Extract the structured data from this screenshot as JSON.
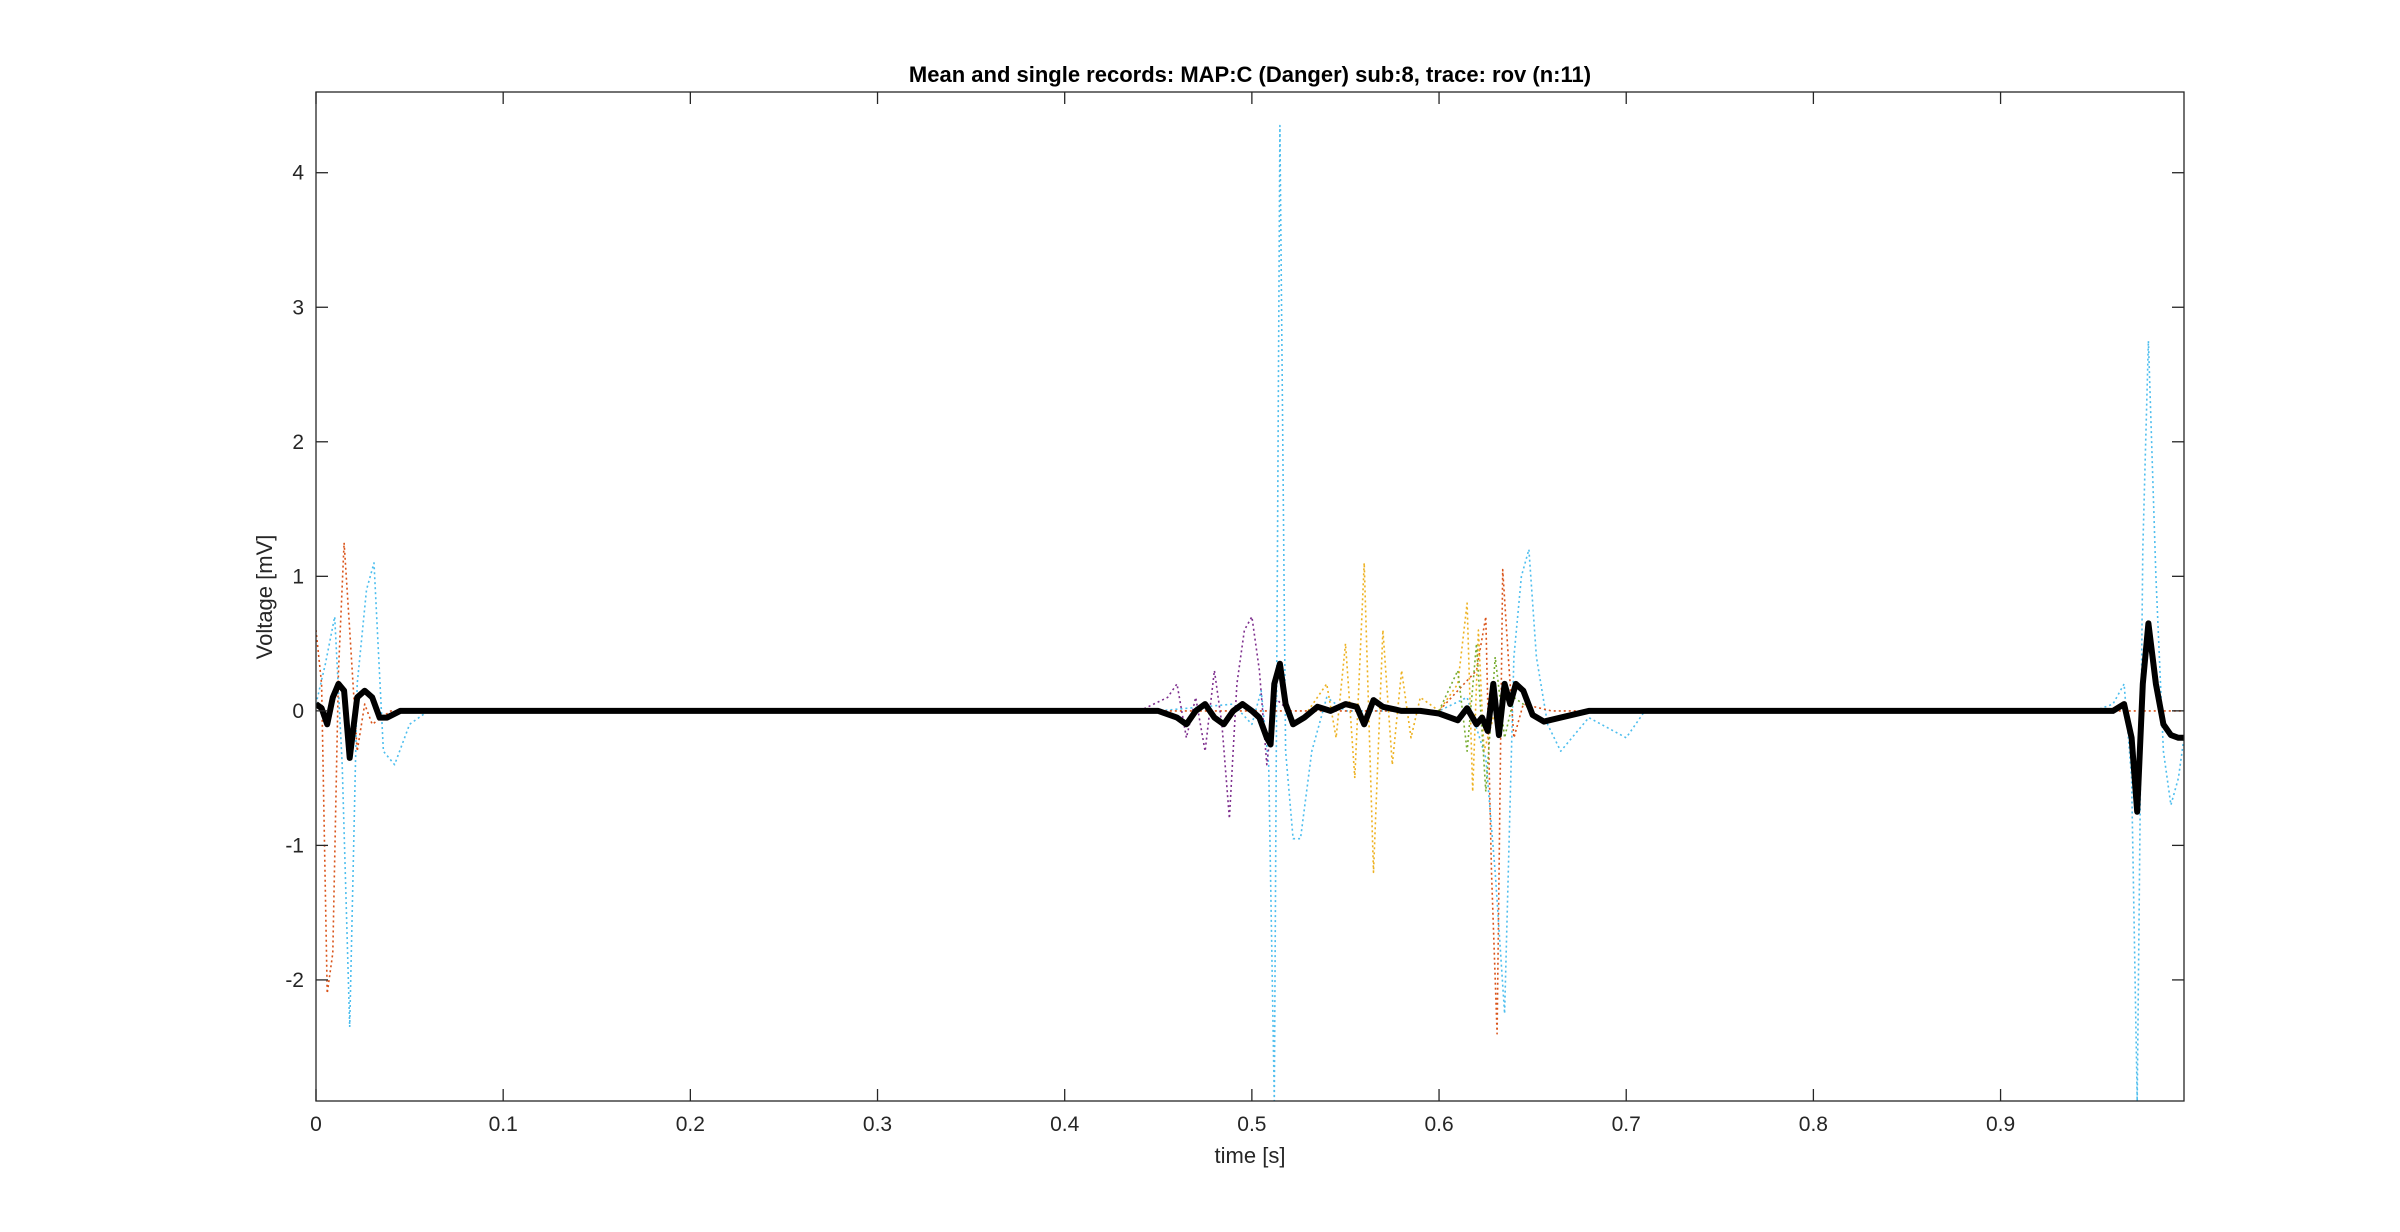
{
  "chart_data": {
    "type": "line",
    "title": "Mean and single records: MAP:C (Danger) sub:8, trace: rov (n:11)",
    "xlabel": "time [s]",
    "ylabel": "Voltage [mV]",
    "xlim": [
      0,
      0.998
    ],
    "ylim": [
      -2.9,
      4.6
    ],
    "xticks": [
      0,
      0.1,
      0.2,
      0.3,
      0.4,
      0.5,
      0.6,
      0.7,
      0.8,
      0.9
    ],
    "xtick_labels": [
      "0",
      "0.1",
      "0.2",
      "0.3",
      "0.4",
      "0.5",
      "0.6",
      "0.7",
      "0.8",
      "0.9"
    ],
    "yticks": [
      -2,
      -1,
      0,
      1,
      2,
      3,
      4
    ],
    "ytick_labels": [
      "-2",
      "-1",
      "0",
      "1",
      "2",
      "3",
      "4"
    ],
    "grid": false,
    "legend": false,
    "series": [
      {
        "style": "dotted",
        "color": "#4DBEEE",
        "x": [
          0,
          0.005,
          0.01,
          0.014,
          0.018,
          0.022,
          0.027,
          0.031,
          0.036,
          0.042,
          0.05,
          0.06,
          0.1,
          0.2,
          0.3,
          0.4,
          0.45,
          0.49,
          0.5,
          0.505,
          0.509,
          0.512,
          0.515,
          0.518,
          0.522,
          0.526,
          0.532,
          0.54,
          0.55,
          0.6,
          0.615,
          0.625,
          0.63,
          0.635,
          0.64,
          0.644,
          0.648,
          0.652,
          0.658,
          0.665,
          0.68,
          0.7,
          0.71,
          0.8,
          0.9,
          0.95,
          0.96,
          0.966,
          0.97,
          0.973,
          0.976,
          0.979,
          0.983,
          0.987,
          0.991,
          0.995,
          0.998
        ],
        "y": [
          0.05,
          0.35,
          0.7,
          -0.4,
          -2.35,
          0.2,
          0.9,
          1.1,
          -0.3,
          -0.4,
          -0.1,
          0,
          0,
          0,
          0,
          0,
          0,
          0.05,
          -0.1,
          0.15,
          -0.4,
          -2.9,
          4.35,
          -0.3,
          -0.95,
          -0.95,
          -0.3,
          0.1,
          0,
          0,
          0.1,
          -0.35,
          -1.2,
          -2.25,
          0.4,
          1.0,
          1.2,
          0.4,
          -0.1,
          -0.3,
          -0.05,
          -0.2,
          0,
          0,
          0,
          0,
          0.05,
          0.2,
          -0.5,
          -2.9,
          1.2,
          2.75,
          1.0,
          -0.3,
          -0.7,
          -0.5,
          -0.2
        ]
      },
      {
        "style": "dotted",
        "color": "#D95319",
        "x": [
          0,
          0.003,
          0.006,
          0.009,
          0.012,
          0.015,
          0.018,
          0.022,
          0.026,
          0.03,
          0.04,
          0.1,
          0.3,
          0.6,
          0.62,
          0.625,
          0.628,
          0.631,
          0.634,
          0.637,
          0.64,
          0.645,
          0.66,
          0.7,
          0.998
        ],
        "y": [
          0.6,
          0.2,
          -2.1,
          -1.8,
          0.3,
          1.25,
          0.6,
          -0.3,
          0.05,
          -0.1,
          0,
          0,
          0,
          0,
          0.3,
          0.7,
          -1.2,
          -2.4,
          1.05,
          0.4,
          -0.2,
          0.05,
          0,
          0,
          0
        ]
      },
      {
        "style": "dotted",
        "color": "#7E2F8E",
        "x": [
          0.44,
          0.455,
          0.46,
          0.465,
          0.47,
          0.475,
          0.48,
          0.484,
          0.488,
          0.492,
          0.496,
          0.5,
          0.504,
          0.508,
          0.512,
          0.52
        ],
        "y": [
          0,
          0.1,
          0.2,
          -0.2,
          0.1,
          -0.3,
          0.3,
          -0.1,
          -0.8,
          0.2,
          0.6,
          0.7,
          0.3,
          -0.4,
          0.1,
          0
        ]
      },
      {
        "style": "dotted",
        "color": "#EDB120",
        "x": [
          0.53,
          0.54,
          0.545,
          0.55,
          0.555,
          0.56,
          0.565,
          0.57,
          0.575,
          0.58,
          0.585,
          0.59,
          0.6,
          0.61,
          0.615,
          0.618,
          0.621,
          0.624,
          0.63
        ],
        "y": [
          0,
          0.2,
          -0.2,
          0.5,
          -0.5,
          1.1,
          -1.2,
          0.6,
          -0.4,
          0.3,
          -0.2,
          0.1,
          0,
          0.2,
          0.8,
          -0.6,
          0.6,
          -0.3,
          0
        ]
      },
      {
        "style": "dotted",
        "color": "#77AC30",
        "x": [
          0.6,
          0.61,
          0.615,
          0.62,
          0.625,
          0.63,
          0.635,
          0.64,
          0.65
        ],
        "y": [
          0,
          0.3,
          -0.3,
          0.5,
          -0.6,
          0.4,
          -0.2,
          0.1,
          0
        ]
      },
      {
        "style": "solid",
        "color": "#000000",
        "x": [
          0,
          0.003,
          0.006,
          0.009,
          0.012,
          0.015,
          0.018,
          0.022,
          0.026,
          0.03,
          0.034,
          0.038,
          0.045,
          0.06,
          0.1,
          0.2,
          0.3,
          0.4,
          0.45,
          0.46,
          0.465,
          0.47,
          0.475,
          0.48,
          0.485,
          0.49,
          0.495,
          0.5,
          0.504,
          0.508,
          0.51,
          0.512,
          0.515,
          0.518,
          0.522,
          0.528,
          0.535,
          0.542,
          0.55,
          0.556,
          0.56,
          0.565,
          0.57,
          0.58,
          0.59,
          0.6,
          0.61,
          0.615,
          0.62,
          0.623,
          0.626,
          0.629,
          0.632,
          0.635,
          0.638,
          0.641,
          0.645,
          0.65,
          0.656,
          0.665,
          0.68,
          0.7,
          0.8,
          0.9,
          0.95,
          0.96,
          0.966,
          0.97,
          0.973,
          0.976,
          0.979,
          0.983,
          0.987,
          0.991,
          0.995,
          0.998
        ],
        "y": [
          0.05,
          0.02,
          -0.1,
          0.1,
          0.2,
          0.15,
          -0.35,
          0.1,
          0.15,
          0.1,
          -0.05,
          -0.05,
          0,
          0,
          0,
          0,
          0,
          0,
          0,
          -0.05,
          -0.1,
          0,
          0.05,
          -0.05,
          -0.1,
          0,
          0.05,
          0,
          -0.05,
          -0.2,
          -0.25,
          0.2,
          0.35,
          0.05,
          -0.1,
          -0.05,
          0.03,
          0,
          0.05,
          0.03,
          -0.1,
          0.08,
          0.03,
          0,
          0,
          -0.02,
          -0.07,
          0.02,
          -0.1,
          -0.05,
          -0.15,
          0.2,
          -0.18,
          0.2,
          0.05,
          0.2,
          0.15,
          -0.03,
          -0.08,
          -0.05,
          0,
          0,
          0,
          0,
          0,
          0,
          0.05,
          -0.2,
          -0.75,
          0.2,
          0.65,
          0.2,
          -0.1,
          -0.18,
          -0.2,
          -0.2
        ]
      }
    ]
  }
}
